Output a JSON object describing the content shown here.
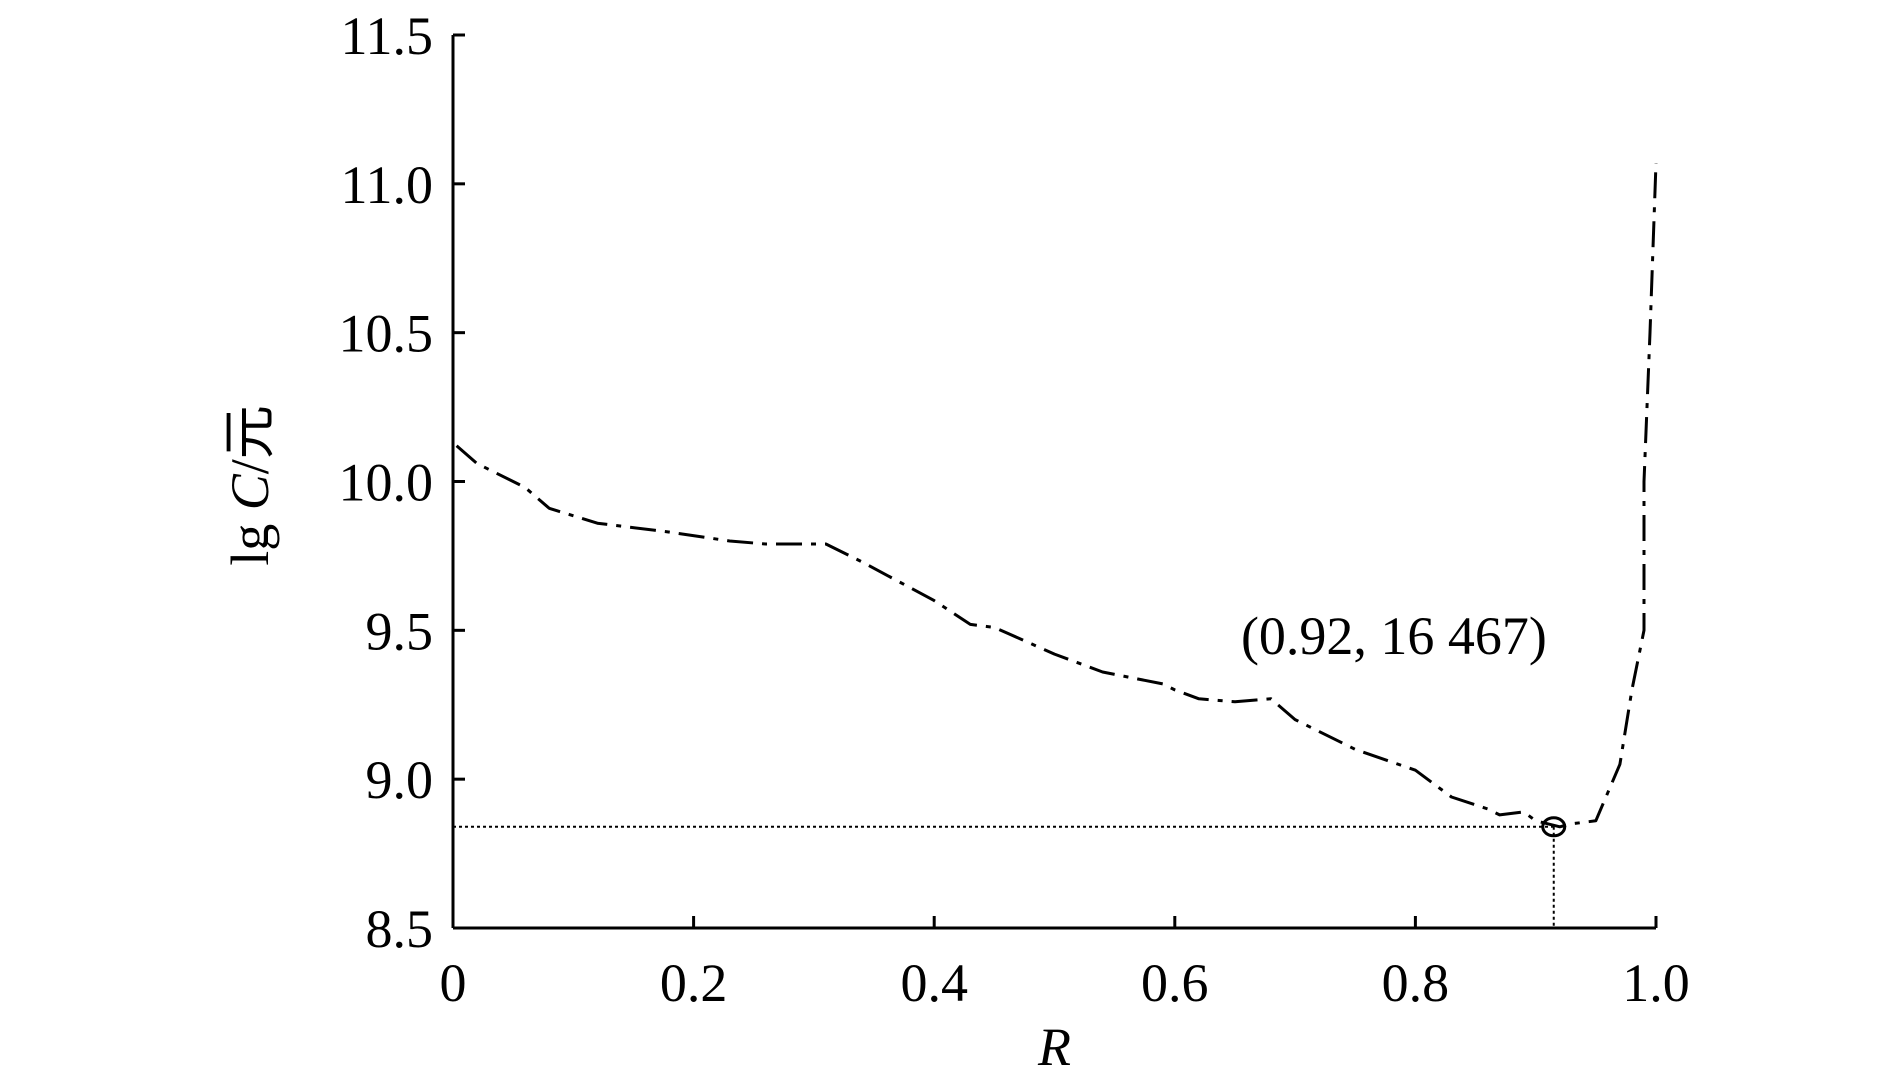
{
  "chart_data": {
    "type": "line",
    "xlabel": "R",
    "ylabel_parts": [
      "lg ",
      "C",
      "/元"
    ],
    "xlim": [
      0,
      1.0
    ],
    "ylim": [
      8.5,
      11.5
    ],
    "x_ticks": [
      0,
      0.2,
      0.4,
      0.6,
      0.8,
      1.0
    ],
    "x_tick_labels": [
      "0",
      "0.2",
      "0.4",
      "0.6",
      "0.8",
      "1.0"
    ],
    "y_ticks": [
      8.5,
      9.0,
      9.5,
      10.0,
      10.5,
      11.0,
      11.5
    ],
    "y_tick_labels": [
      "8.5",
      "9.0",
      "9.5",
      "10.0",
      "10.5",
      "11.0",
      "11.5"
    ],
    "grid": false,
    "series": [
      {
        "style": "dash-dot",
        "x": [
          0.003,
          0.02,
          0.06,
          0.08,
          0.12,
          0.18,
          0.23,
          0.26,
          0.31,
          0.34,
          0.4,
          0.43,
          0.45,
          0.5,
          0.54,
          0.59,
          0.6,
          0.62,
          0.65,
          0.68,
          0.7,
          0.75,
          0.8,
          0.83,
          0.86,
          0.87,
          0.89,
          0.9,
          0.92,
          0.93,
          0.95,
          0.97,
          0.98,
          0.99,
          0.99,
          0.995,
          1.0
        ],
        "y": [
          10.12,
          10.06,
          9.98,
          9.91,
          9.86,
          9.83,
          9.8,
          9.79,
          9.79,
          9.73,
          9.6,
          9.52,
          9.51,
          9.42,
          9.36,
          9.32,
          9.3,
          9.27,
          9.26,
          9.27,
          9.2,
          9.1,
          9.03,
          8.94,
          8.9,
          8.88,
          8.89,
          8.86,
          8.84,
          8.85,
          8.86,
          9.05,
          9.3,
          9.5,
          10.0,
          10.5,
          11.07
        ]
      }
    ],
    "reference_lines": {
      "y": 8.84,
      "x": 0.915,
      "style": "dotted"
    },
    "marker": {
      "x": 0.915,
      "y": 8.84,
      "shape": "open-circle"
    },
    "annotation": {
      "text": "(0.92, 16 467)",
      "x": 0.655,
      "y": 9.42
    }
  }
}
